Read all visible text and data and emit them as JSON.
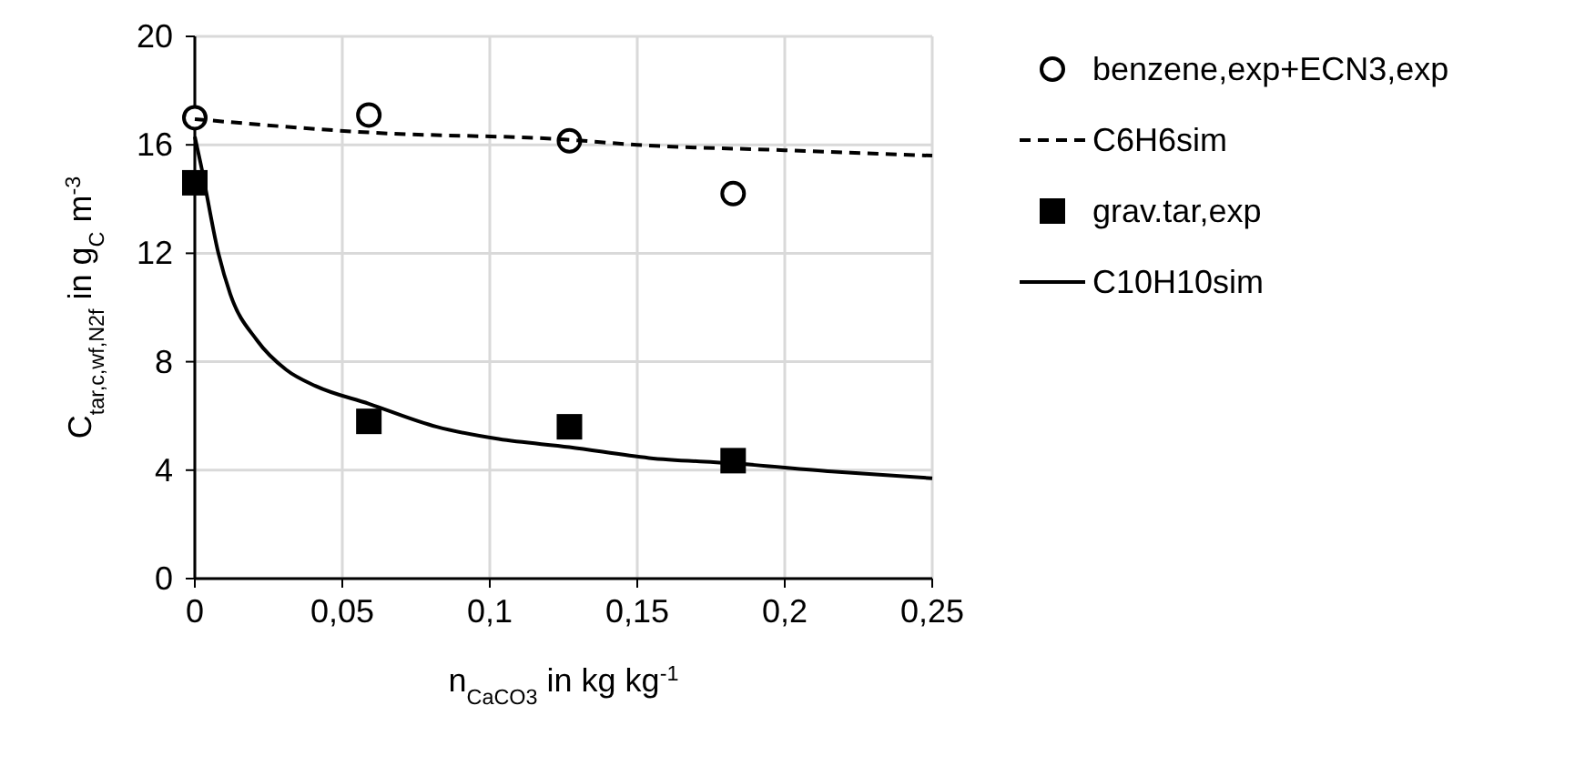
{
  "chart_data": {
    "type": "scatter",
    "xlabel": "n$_{CaCO3}$ in kg kg$^{-1}$",
    "ylabel": "C$_{tar,c,wf,N2f}$ in g$_{C}$ m$^{-3}$",
    "xlim": [
      0,
      0.25
    ],
    "ylim": [
      0,
      20
    ],
    "xticks": [
      0,
      {
        "value": 0.05,
        "label": "0,05"
      },
      {
        "value": 0.1,
        "label": "0,1"
      },
      {
        "value": 0.15,
        "label": "0,15"
      },
      {
        "value": 0.2,
        "label": "0,2"
      },
      {
        "value": 0.25,
        "label": "0,25"
      }
    ],
    "yticks": [
      0,
      4,
      8,
      12,
      16,
      20
    ],
    "grid": true,
    "legend": "right",
    "series": [
      {
        "name": "benzene,exp+ECN3,exp",
        "marker": "circle",
        "color": "#000000",
        "x": [
          0,
          0.059,
          0.127,
          0.1825
        ],
        "values": [
          17.0,
          17.1,
          16.15,
          14.2
        ]
      },
      {
        "name": "C6H6sim",
        "type": "line",
        "line_style": "dashed",
        "marker": "none",
        "color": "#000000",
        "x": [
          0,
          0.06,
          0.125,
          0.15,
          0.2,
          0.25
        ],
        "values": [
          16.95,
          16.45,
          16.2,
          16.0,
          15.8,
          15.6
        ]
      },
      {
        "name": "grav.tar,exp",
        "marker": "square",
        "color": "#000000",
        "x": [
          0,
          0.059,
          0.127,
          0.1825
        ],
        "values": [
          14.6,
          5.8,
          5.6,
          4.35
        ]
      },
      {
        "name": "C10H10sim",
        "type": "line",
        "line_style": "solid",
        "marker": "none",
        "color": "#000000",
        "x": [
          0,
          0.002,
          0.008,
          0.012,
          0.021,
          0.031,
          0.041,
          0.059,
          0.082,
          0.103,
          0.127,
          0.154,
          0.1825,
          0.216,
          0.25
        ],
        "values": [
          16.3,
          15.3,
          12.0,
          10.5,
          8.8,
          7.7,
          7.1,
          6.45,
          5.6,
          5.15,
          4.85,
          4.45,
          4.25,
          3.95,
          3.7
        ]
      }
    ]
  }
}
